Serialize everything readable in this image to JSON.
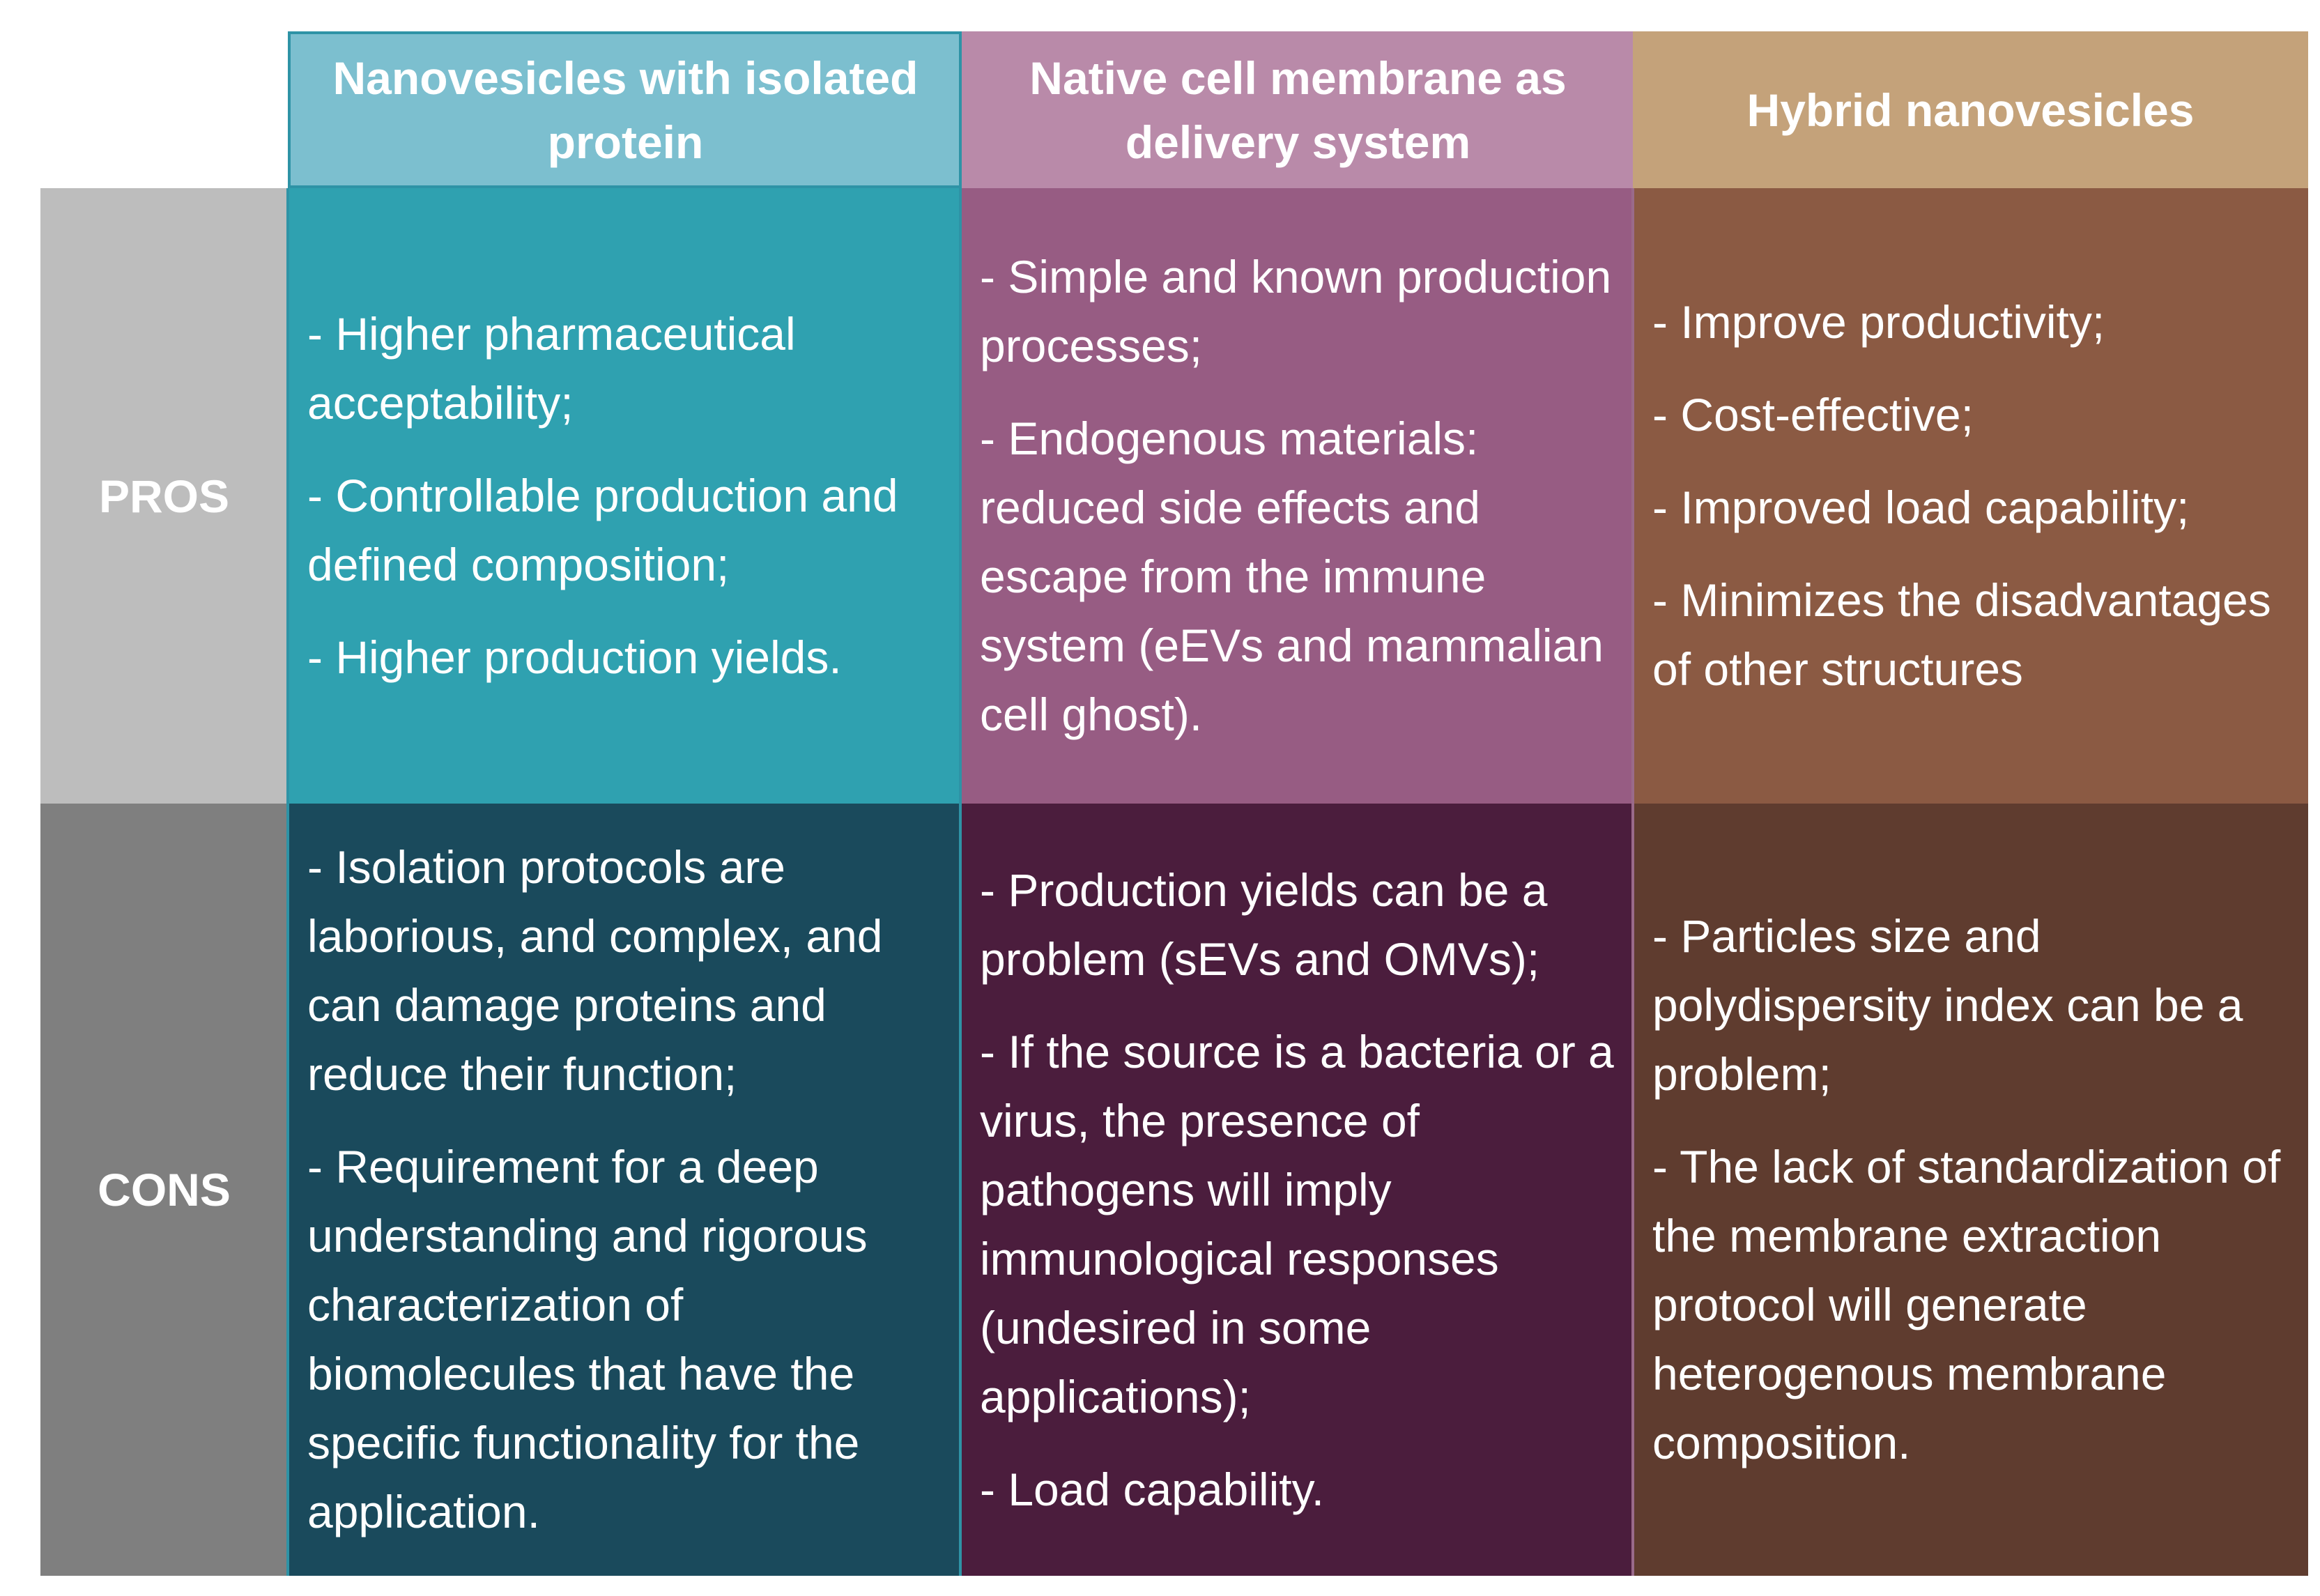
{
  "colors": {
    "pros_label_bg": "#bdbdbd",
    "cons_label_bg": "#7f7f7f",
    "col1_header_bg": "#7cbfcf",
    "col1_header_border": "#2e93a6",
    "col2_header_bg": "#b98aa9",
    "col2_header_border": "#9a6a8a",
    "col3_header_bg": "#c4a27a",
    "col3_header_border": "#8e6845",
    "col1_pros_bg": "#2fa1b0",
    "col2_pros_bg": "#975c83",
    "col3_pros_bg": "#8b5a43",
    "col1_cons_bg": "#1a4a5c",
    "col2_cons_bg": "#4b1d3d",
    "col3_cons_bg": "#5f3c2f",
    "separator": "#2e93a6"
  },
  "table": {
    "columns": [
      {
        "header": "Nanovesicles with isolated protein"
      },
      {
        "header": "Native cell membrane as delivery system"
      },
      {
        "header": "Hybrid nanovesicles"
      }
    ],
    "rows": [
      {
        "label": "PROS",
        "cells": [
          [
            "- Higher pharmaceutical acceptability;",
            "- Controllable production and defined composition;",
            "- Higher production yields."
          ],
          [
            "- Simple and known production processes;",
            "- Endogenous materials: reduced side effects and escape from the immune system (eEVs and mammalian cell ghost)."
          ],
          [
            "- Improve productivity;",
            "- Cost-effective;",
            "- Improved load capability;",
            "- Minimizes the disadvantages of other structures"
          ]
        ]
      },
      {
        "label": "CONS",
        "cells": [
          [
            "- Isolation protocols are laborious, and complex, and can damage proteins and reduce their function;",
            "- Requirement for a deep understanding and rigorous characterization of biomolecules that have the specific functionality for the application."
          ],
          [
            "- Production yields can be a problem (sEVs and OMVs);",
            "- If the source is a bacteria or a virus, the presence of pathogens will imply immunological responses (undesired in some applications);",
            "- Load capability."
          ],
          [
            "- Particles size and polydispersity index can be a problem;",
            "- The lack of standardization of the membrane extraction protocol will generate heterogenous membrane composition."
          ]
        ]
      }
    ]
  }
}
